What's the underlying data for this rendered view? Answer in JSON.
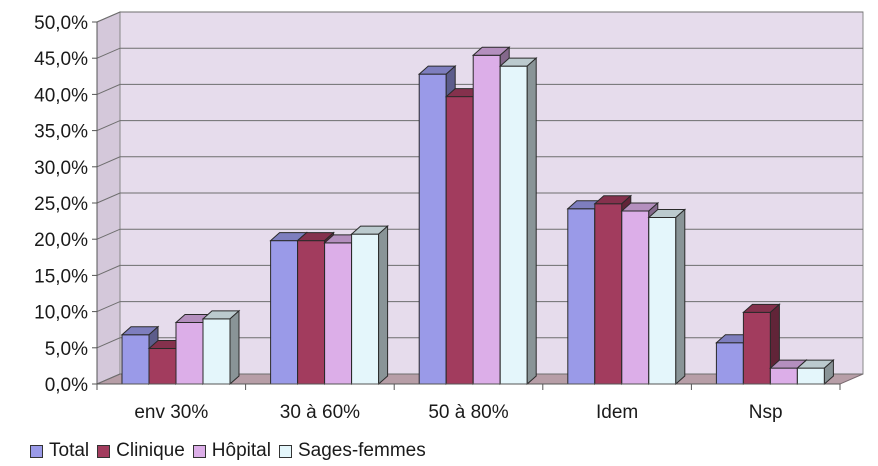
{
  "chart_data": {
    "type": "bar",
    "title": "",
    "xlabel": "",
    "ylabel": "",
    "ylim": [
      0,
      50
    ],
    "y_ticks": [
      0,
      5,
      10,
      15,
      20,
      25,
      30,
      35,
      40,
      45,
      50
    ],
    "y_tick_labels": [
      "0,0%",
      "5,0%",
      "10,0%",
      "15,0%",
      "20,0%",
      "25,0%",
      "30,0%",
      "35,0%",
      "40,0%",
      "45,0%",
      "50,0%"
    ],
    "categories": [
      "env 30%",
      "30 à 60%",
      "50 à 80%",
      "Idem",
      "Nsp"
    ],
    "series": [
      {
        "name": "Total",
        "color": "#9a9ae8",
        "values": [
          6.8,
          19.8,
          42.8,
          24.2,
          5.7
        ]
      },
      {
        "name": "Clinique",
        "color": "#a23c5e",
        "values": [
          4.9,
          19.8,
          39.7,
          24.9,
          9.9
        ]
      },
      {
        "name": "Hôpital",
        "color": "#dcaee8",
        "values": [
          8.5,
          19.5,
          45.4,
          23.9,
          2.2
        ]
      },
      {
        "name": "Sages-femmes",
        "color": "#e4f6fb",
        "values": [
          9.0,
          20.7,
          43.9,
          23.0,
          2.2
        ]
      }
    ],
    "grid": true,
    "legend_position": "bottom-left",
    "plot_background": "#e6dcec",
    "floor_color": "#b79ea7"
  }
}
